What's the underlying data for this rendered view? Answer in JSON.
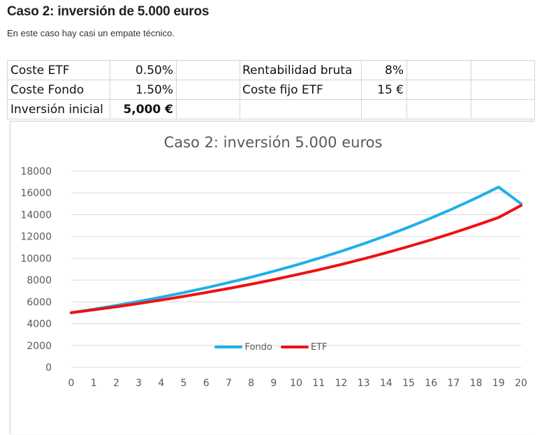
{
  "article": {
    "title": "Caso 2: inversión de 5.000 euros",
    "subtitle": "En este caso hay casi un empate técnico."
  },
  "sheet": {
    "rows": [
      {
        "label1": "Coste ETF",
        "value1": "0.50%",
        "label2": "Rentabilidad bruta",
        "value2": "8%"
      },
      {
        "label1": "Coste Fondo",
        "value1": "1.50%",
        "label2": "Coste fijo ETF",
        "value2": "15 €"
      },
      {
        "label1": "Inversión inicial",
        "value1": "5,000 €",
        "label2": "",
        "value2": ""
      }
    ]
  },
  "chart_data": {
    "type": "line",
    "title": "Caso 2: inversión 5.000 euros",
    "x": [
      0,
      1,
      2,
      3,
      4,
      5,
      6,
      7,
      8,
      9,
      10,
      11,
      12,
      13,
      14,
      15,
      16,
      17,
      18,
      19,
      20
    ],
    "ylim": [
      0,
      18000
    ],
    "yticks": [
      0,
      2000,
      4000,
      6000,
      8000,
      10000,
      12000,
      14000,
      16000,
      18000
    ],
    "grid": true,
    "legend_position": "bottom",
    "series": [
      {
        "name": "Fondo",
        "color": "#1EB0E8",
        "values": [
          5000,
          5325,
          5670,
          6040,
          6430,
          6850,
          7290,
          7770,
          8270,
          8810,
          9380,
          9990,
          10640,
          11330,
          12070,
          12850,
          13690,
          14580,
          15520,
          16530,
          15000
        ]
      },
      {
        "name": "ETF",
        "color": "#EE1111",
        "values": [
          5000,
          5270,
          5550,
          5850,
          6170,
          6500,
          6860,
          7230,
          7620,
          8040,
          8480,
          8940,
          9430,
          9950,
          10500,
          11080,
          11690,
          12340,
          13020,
          13740,
          14850
        ]
      }
    ]
  }
}
